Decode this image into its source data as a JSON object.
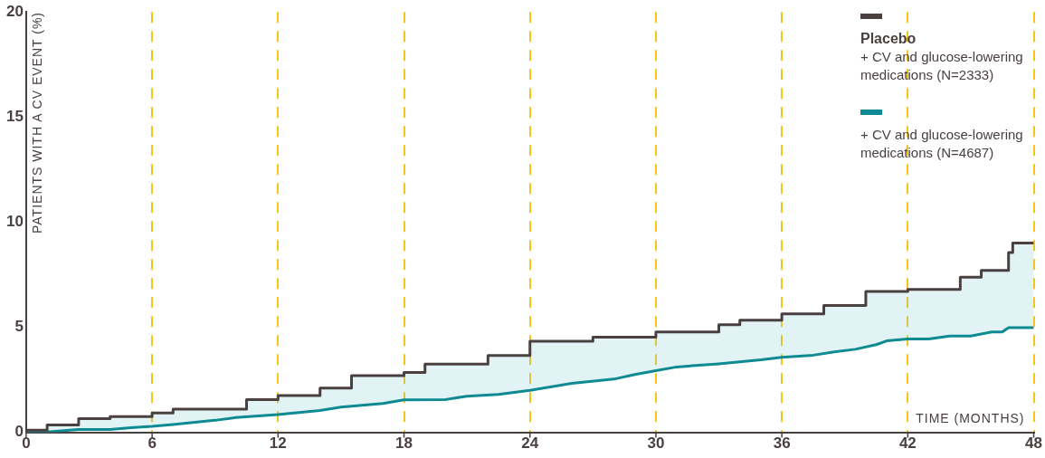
{
  "chart_data": {
    "type": "line",
    "xlabel": "TIME (MONTHS)",
    "ylabel": "PATIENTS WITH A CV EVENT (%)",
    "xlim": [
      0,
      48
    ],
    "xticks": [
      0,
      6,
      12,
      18,
      24,
      30,
      36,
      42,
      48
    ],
    "ylim": [
      0,
      20
    ],
    "yticks": [
      0,
      5,
      10,
      15,
      20
    ],
    "grid": "x",
    "legend": "top right",
    "marker": "none",
    "annotations": [
      "+ CV and glucose-lowering medications (N=2333)",
      "+ CV and glucose-lowering medications (N=4687)"
    ],
    "series": [
      {
        "name": "Placebo",
        "type": "step",
        "color": "#4a4040",
        "x": [
          0,
          1,
          2.5,
          4,
          6,
          7,
          10.5,
          12,
          14,
          15.5,
          18,
          19,
          22,
          24,
          27,
          30,
          33,
          34,
          36,
          38,
          40,
          42,
          44.5,
          45.5,
          46.8,
          47,
          47.5,
          48
        ],
        "values": [
          0,
          0.1,
          0.35,
          0.65,
          0.75,
          0.92,
          1.1,
          1.55,
          1.75,
          2.1,
          2.7,
          2.85,
          3.25,
          3.65,
          4.33,
          4.53,
          4.77,
          5.12,
          5.33,
          5.64,
          6.03,
          6.7,
          6.8,
          7.38,
          7.7,
          8.55,
          9.0,
          9.0
        ]
      },
      {
        "type": "line",
        "color": "#0e8a92",
        "x": [
          0,
          1,
          2.5,
          4,
          5,
          6,
          7,
          9,
          10,
          12,
          14,
          15,
          17,
          18,
          20,
          21,
          22.5,
          24,
          26,
          28,
          29,
          30,
          31,
          33,
          35,
          36,
          37.5,
          38.5,
          39.5,
          40.5,
          41,
          42,
          43,
          44,
          45,
          46,
          46.5,
          46.8,
          48
        ],
        "values": [
          0,
          0.02,
          0.13,
          0.13,
          0.22,
          0.28,
          0.37,
          0.57,
          0.7,
          0.84,
          1.04,
          1.2,
          1.37,
          1.54,
          1.56,
          1.72,
          1.8,
          2.0,
          2.33,
          2.53,
          2.75,
          2.93,
          3.11,
          3.26,
          3.45,
          3.57,
          3.67,
          3.83,
          3.95,
          4.17,
          4.35,
          4.44,
          4.44,
          4.58,
          4.58,
          4.77,
          4.77,
          4.98,
          4.98
        ]
      }
    ]
  }
}
